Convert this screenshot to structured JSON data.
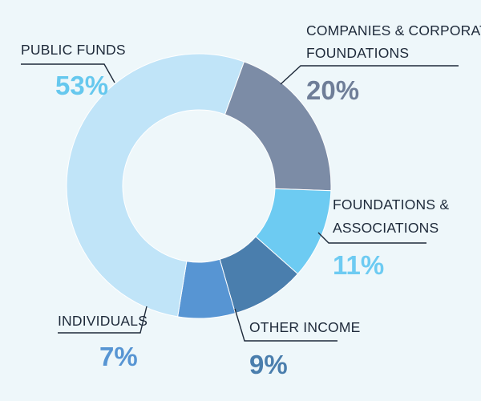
{
  "chart_data": {
    "type": "pie",
    "slices": [
      {
        "label": "COMPANIES & CORPORATE FOUNDATIONS",
        "label_lines": [
          "COMPANIES & CORPORATE",
          "FOUNDATIONS"
        ],
        "value": 20,
        "value_text": "20%",
        "color": "#7c8ca6",
        "value_color": "#6f7e98"
      },
      {
        "label": "FOUNDATIONS & ASSOCIATIONS",
        "label_lines": [
          "FOUNDATIONS &",
          "ASSOCIATIONS"
        ],
        "value": 11,
        "value_text": "11%",
        "color": "#6dcbf2",
        "value_color": "#6dcbf2"
      },
      {
        "label": "OTHER INCOME",
        "label_lines": [
          "OTHER INCOME"
        ],
        "value": 9,
        "value_text": "9%",
        "color": "#4a7ead",
        "value_color": "#4a7ead"
      },
      {
        "label": "INDIVIDUALS",
        "label_lines": [
          "INDIVIDUALS"
        ],
        "value": 7,
        "value_text": "7%",
        "color": "#5795d3",
        "value_color": "#5795d3"
      },
      {
        "label": "PUBLIC FUNDS",
        "label_lines": [
          "PUBLIC FUNDS"
        ],
        "value": 53,
        "value_text": "53%",
        "color": "#c0e4f8",
        "value_color": "#66c8ee"
      }
    ],
    "donut": true
  }
}
